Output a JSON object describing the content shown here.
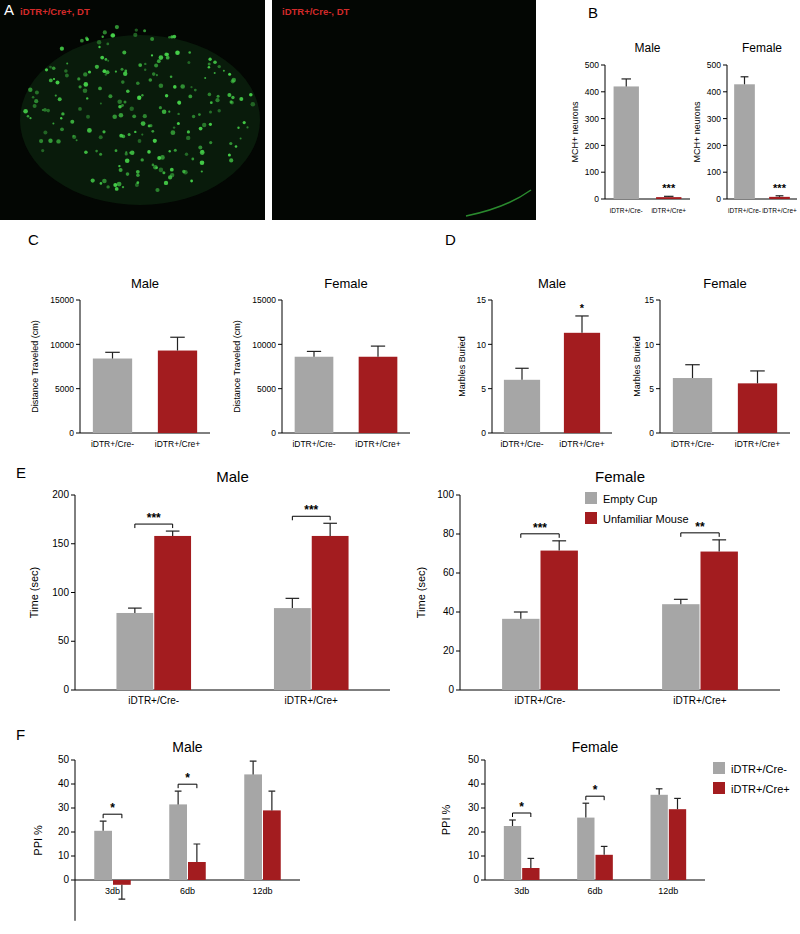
{
  "chart_data": [
    {
      "type": "image",
      "panel": "A",
      "images": [
        {
          "label": "iDTR+/Cre+, DT"
        },
        {
          "label": "iDTR+/Cre-, DT"
        }
      ]
    },
    {
      "type": "bar",
      "panel": "B",
      "title": "Male",
      "ylabel": "MCH+ neurons",
      "categories": [
        "iDTR+/Cre-",
        "iDTR+/Cre+"
      ],
      "values": [
        420,
        7
      ],
      "errors": [
        28,
        3
      ],
      "colors": [
        "#a6a6a6",
        "#a31c1f"
      ],
      "ylim": [
        0,
        500
      ],
      "yticks": [
        0,
        100,
        200,
        300,
        400,
        500
      ],
      "annotations": [
        {
          "text": "***",
          "category": 1
        }
      ]
    },
    {
      "type": "bar",
      "title": "Female",
      "ylabel": "MCH+ neurons",
      "categories": [
        "iDTR+/Cre-",
        "iDTR+/Cre+"
      ],
      "values": [
        428,
        8
      ],
      "errors": [
        28,
        4
      ],
      "colors": [
        "#a6a6a6",
        "#a31c1f"
      ],
      "ylim": [
        0,
        500
      ],
      "yticks": [
        0,
        100,
        200,
        300,
        400,
        500
      ],
      "annotations": [
        {
          "text": "***",
          "category": 1
        }
      ]
    },
    {
      "type": "bar",
      "panel": "C",
      "title": "Male",
      "ylabel": "Distance Traveled (cm)",
      "categories": [
        "iDTR+/Cre-",
        "iDTR+/Cre+"
      ],
      "values": [
        8400,
        9300
      ],
      "errors": [
        700,
        1500
      ],
      "colors": [
        "#a6a6a6",
        "#a31c1f"
      ],
      "ylim": [
        0,
        15000
      ],
      "yticks": [
        0,
        5000,
        10000,
        15000
      ]
    },
    {
      "type": "bar",
      "title": "Female",
      "ylabel": "Distance Traveled (cm)",
      "categories": [
        "iDTR+/Cre-",
        "iDTR+/Cre+"
      ],
      "values": [
        8600,
        8600
      ],
      "errors": [
        600,
        1200
      ],
      "colors": [
        "#a6a6a6",
        "#a31c1f"
      ],
      "ylim": [
        0,
        15000
      ],
      "yticks": [
        0,
        5000,
        10000,
        15000
      ]
    },
    {
      "type": "bar",
      "panel": "D",
      "title": "Male",
      "ylabel": "Marbles Buried",
      "categories": [
        "iDTR+/Cre-",
        "iDTR+/Cre+"
      ],
      "values": [
        6,
        11.3
      ],
      "errors": [
        1.3,
        1.9
      ],
      "colors": [
        "#a6a6a6",
        "#a31c1f"
      ],
      "ylim": [
        0,
        15
      ],
      "yticks": [
        0,
        5,
        10,
        15
      ],
      "annotations": [
        {
          "text": "*",
          "category": 1
        }
      ]
    },
    {
      "type": "bar",
      "title": "Female",
      "ylabel": "Marbles Buried",
      "categories": [
        "iDTR+/Cre-",
        "iDTR+/Cre+"
      ],
      "values": [
        6.2,
        5.6
      ],
      "errors": [
        1.5,
        1.4
      ],
      "colors": [
        "#a6a6a6",
        "#a31c1f"
      ],
      "ylim": [
        0,
        15
      ],
      "yticks": [
        0,
        5,
        10,
        15
      ]
    },
    {
      "type": "bar",
      "panel": "E",
      "title": "Male",
      "ylabel": "Time (sec)",
      "categories": [
        "iDTR+/Cre-",
        "iDTR+/Cre+"
      ],
      "series": [
        {
          "name": "Empty Cup",
          "color": "#a6a6a6",
          "values": [
            79,
            84
          ],
          "errors": [
            5,
            10
          ]
        },
        {
          "name": "Unfamiliar Mouse",
          "color": "#a31c1f",
          "values": [
            158,
            158
          ],
          "errors": [
            5,
            13
          ]
        }
      ],
      "ylim": [
        0,
        200
      ],
      "yticks": [
        0,
        50,
        100,
        150,
        200
      ],
      "legend": "upper right",
      "annotations": [
        {
          "text": "***",
          "category": 0
        },
        {
          "text": "***",
          "category": 1
        }
      ]
    },
    {
      "type": "bar",
      "title": "Female",
      "ylabel": "Time (sec)",
      "categories": [
        "iDTR+/Cre-",
        "iDTR+/Cre+"
      ],
      "series": [
        {
          "color": "#a6a6a6",
          "values": [
            36.5,
            44
          ],
          "errors": [
            3.5,
            2.5
          ]
        },
        {
          "color": "#a31c1f",
          "values": [
            71.5,
            71
          ],
          "errors": [
            5,
            6
          ]
        }
      ],
      "ylim": [
        0,
        100
      ],
      "yticks": [
        0,
        20,
        40,
        60,
        80,
        100
      ],
      "annotations": [
        {
          "text": "***",
          "category": 0
        },
        {
          "text": "**",
          "category": 1
        }
      ]
    },
    {
      "type": "bar",
      "panel": "F",
      "title": "Male",
      "ylabel": "PPI %",
      "categories": [
        "3db",
        "6db",
        "12db"
      ],
      "series": [
        {
          "color": "#a6a6a6",
          "values": [
            20.5,
            31.5,
            44
          ],
          "errors": [
            4,
            5.5,
            5.5
          ]
        },
        {
          "color": "#a31c1f",
          "values": [
            -2,
            7.5,
            29
          ],
          "errors": [
            6,
            7.5,
            8
          ]
        }
      ],
      "ylim": [
        -17,
        50
      ],
      "yticks": [
        0,
        10,
        20,
        30,
        40,
        50
      ],
      "annotations": [
        {
          "text": "*",
          "category": 0
        },
        {
          "text": "*",
          "category": 1
        }
      ]
    },
    {
      "type": "bar",
      "title": "Female",
      "ylabel": "PPI %",
      "categories": [
        "3db",
        "6db",
        "12db"
      ],
      "series": [
        {
          "name": "iDTR+/Cre-",
          "color": "#a6a6a6",
          "values": [
            22.5,
            26,
            35.5
          ],
          "errors": [
            2.5,
            6,
            2.5
          ]
        },
        {
          "name": "iDTR+/Cre+",
          "color": "#a31c1f",
          "values": [
            5,
            10.5,
            29.5
          ],
          "errors": [
            4,
            3.5,
            4.5
          ]
        }
      ],
      "ylim": [
        0,
        50
      ],
      "yticks": [
        0,
        10,
        20,
        30,
        40,
        50
      ],
      "legend": "upper right",
      "annotations": [
        {
          "text": "*",
          "category": 0
        },
        {
          "text": "*",
          "category": 1
        }
      ]
    }
  ]
}
